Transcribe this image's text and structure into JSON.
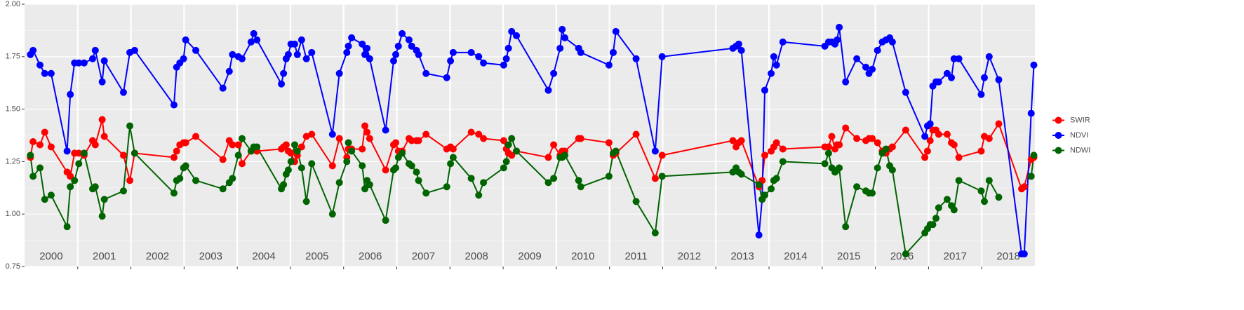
{
  "chart_data": {
    "type": "line",
    "xlim": [
      2000,
      2019
    ],
    "xticks": [
      2001,
      2002,
      2003,
      2004,
      2005,
      2006,
      2007,
      2008,
      2009,
      2010,
      2011,
      2012,
      2013,
      2014,
      2015,
      2016,
      2017,
      2018
    ],
    "ylim": [
      0.75,
      2.0
    ],
    "yticks": [
      {
        "value": 0.75,
        "label": "0.75"
      },
      {
        "value": 1.0,
        "label": "1.00"
      },
      {
        "value": 1.25,
        "label": "1.25"
      },
      {
        "value": 1.5,
        "label": "1.50"
      },
      {
        "value": 1.75,
        "label": "1.75"
      },
      {
        "value": 2.0,
        "label": "2.00"
      }
    ],
    "grid": true,
    "legend": "right",
    "annotations": [
      {
        "x": 2000.5,
        "text": "2000"
      },
      {
        "x": 2001.5,
        "text": "2001"
      },
      {
        "x": 2002.5,
        "text": "2002"
      },
      {
        "x": 2003.5,
        "text": "2003"
      },
      {
        "x": 2004.5,
        "text": "2004"
      },
      {
        "x": 2005.5,
        "text": "2005"
      },
      {
        "x": 2006.5,
        "text": "2006"
      },
      {
        "x": 2007.5,
        "text": "2007"
      },
      {
        "x": 2008.5,
        "text": "2008"
      },
      {
        "x": 2009.5,
        "text": "2009"
      },
      {
        "x": 2010.5,
        "text": "2010"
      },
      {
        "x": 2011.5,
        "text": "2011"
      },
      {
        "x": 2012.5,
        "text": "2012"
      },
      {
        "x": 2013.5,
        "text": "2013"
      },
      {
        "x": 2014.5,
        "text": "2014"
      },
      {
        "x": 2015.5,
        "text": "2015"
      },
      {
        "x": 2016.5,
        "text": "2016"
      },
      {
        "x": 2017.5,
        "text": "2017"
      },
      {
        "x": 2018.5,
        "text": "2018"
      }
    ],
    "x": [
      2000.11,
      2000.16,
      2000.29,
      2000.38,
      2000.5,
      2000.8,
      2000.86,
      2000.94,
      2001.02,
      2001.12,
      2001.28,
      2001.33,
      2001.46,
      2001.5,
      2001.86,
      2001.98,
      2002.07,
      2002.81,
      2002.86,
      2002.92,
      2002.99,
      2003.03,
      2003.22,
      2003.73,
      2003.85,
      2003.91,
      2004.02,
      2004.09,
      2004.26,
      2004.31,
      2004.37,
      2004.83,
      2004.87,
      2004.92,
      2004.96,
      2005.01,
      2005.08,
      2005.13,
      2005.21,
      2005.3,
      2005.4,
      2005.79,
      2005.92,
      2006.06,
      2006.09,
      2006.15,
      2006.35,
      2006.4,
      2006.44,
      2006.49,
      2006.79,
      2006.94,
      2006.98,
      2007.03,
      2007.1,
      2007.23,
      2007.28,
      2007.37,
      2007.41,
      2007.55,
      2007.94,
      2008.01,
      2008.06,
      2008.4,
      2008.54,
      2008.63,
      2009.01,
      2009.06,
      2009.1,
      2009.16,
      2009.25,
      2009.85,
      2009.95,
      2010.07,
      2010.11,
      2010.16,
      2010.42,
      2010.46,
      2010.99,
      2011.07,
      2011.12,
      2011.5,
      2011.86,
      2011.99,
      2013.32,
      2013.38,
      2013.43,
      2013.48,
      2013.81,
      2013.87,
      2013.92,
      2014.04,
      2014.09,
      2014.14,
      2014.26,
      2015.05,
      2015.12,
      2015.18,
      2015.24,
      2015.28,
      2015.32,
      2015.44,
      2015.65,
      2015.82,
      2015.88,
      2015.94,
      2016.04,
      2016.13,
      2016.2,
      2016.27,
      2016.32,
      2016.57,
      2016.93,
      2016.98,
      2017.03,
      2017.08,
      2017.14,
      2017.19,
      2017.35,
      2017.43,
      2017.48,
      2017.57,
      2017.99,
      2018.05,
      2018.14,
      2018.32,
      2018.75,
      2018.8,
      2018.93,
      2018.98
    ],
    "series": [
      {
        "name": "SWIR",
        "color": "#ff0000",
        "values": [
          1.27,
          1.345,
          1.33,
          1.39,
          1.32,
          1.2,
          1.18,
          1.29,
          1.29,
          1.28,
          1.35,
          1.33,
          1.45,
          1.37,
          1.28,
          1.16,
          1.29,
          1.27,
          1.3,
          1.33,
          1.34,
          1.34,
          1.37,
          1.26,
          1.35,
          1.33,
          1.33,
          1.24,
          1.3,
          1.31,
          1.3,
          1.31,
          1.32,
          1.33,
          1.3,
          1.29,
          1.25,
          1.28,
          1.32,
          1.37,
          1.38,
          1.23,
          1.36,
          1.27,
          1.31,
          1.31,
          1.31,
          1.42,
          1.39,
          1.36,
          1.21,
          1.33,
          1.34,
          1.3,
          1.3,
          1.36,
          1.35,
          1.35,
          1.35,
          1.38,
          1.31,
          1.32,
          1.31,
          1.39,
          1.38,
          1.36,
          1.35,
          1.31,
          1.29,
          1.28,
          1.3,
          1.27,
          1.33,
          1.28,
          1.3,
          1.3,
          1.36,
          1.36,
          1.34,
          1.28,
          1.29,
          1.38,
          1.17,
          1.28,
          1.35,
          1.32,
          1.34,
          1.35,
          1.13,
          1.16,
          1.28,
          1.3,
          1.32,
          1.34,
          1.31,
          1.32,
          1.32,
          1.37,
          1.31,
          1.33,
          1.33,
          1.41,
          1.36,
          1.35,
          1.36,
          1.36,
          1.34,
          1.3,
          1.29,
          1.31,
          1.32,
          1.4,
          1.27,
          1.3,
          1.35,
          1.4,
          1.4,
          1.38,
          1.38,
          1.34,
          1.33,
          1.27,
          1.3,
          1.37,
          1.36,
          1.43,
          1.12,
          1.13,
          1.26,
          1.27
        ]
      },
      {
        "name": "NDVI",
        "color": "#0000ff",
        "values": [
          1.76,
          1.78,
          1.71,
          1.67,
          1.67,
          1.3,
          1.57,
          1.72,
          1.72,
          1.72,
          1.74,
          1.78,
          1.63,
          1.73,
          1.58,
          1.77,
          1.78,
          1.52,
          1.7,
          1.72,
          1.74,
          1.83,
          1.78,
          1.6,
          1.68,
          1.76,
          1.75,
          1.74,
          1.82,
          1.86,
          1.83,
          1.62,
          1.67,
          1.74,
          1.76,
          1.81,
          1.81,
          1.76,
          1.83,
          1.74,
          1.77,
          1.38,
          1.67,
          1.77,
          1.8,
          1.84,
          1.81,
          1.76,
          1.79,
          1.74,
          1.4,
          1.73,
          1.76,
          1.8,
          1.86,
          1.83,
          1.8,
          1.78,
          1.76,
          1.67,
          1.65,
          1.73,
          1.77,
          1.77,
          1.75,
          1.72,
          1.71,
          1.74,
          1.79,
          1.87,
          1.85,
          1.59,
          1.67,
          1.79,
          1.88,
          1.84,
          1.79,
          1.77,
          1.71,
          1.77,
          1.87,
          1.74,
          1.3,
          1.75,
          1.79,
          1.8,
          1.81,
          1.78,
          0.9,
          1.07,
          1.59,
          1.67,
          1.75,
          1.71,
          1.82,
          1.8,
          1.82,
          1.82,
          1.81,
          1.83,
          1.89,
          1.63,
          1.74,
          1.7,
          1.67,
          1.69,
          1.78,
          1.82,
          1.83,
          1.84,
          1.82,
          1.58,
          1.37,
          1.42,
          1.43,
          1.61,
          1.63,
          1.63,
          1.67,
          1.65,
          1.74,
          1.74,
          1.57,
          1.65,
          1.75,
          1.64,
          0.81,
          0.81,
          1.48,
          1.71
        ]
      },
      {
        "name": "NDWI",
        "color": "#006400",
        "values": [
          1.28,
          1.18,
          1.22,
          1.07,
          1.09,
          0.94,
          1.13,
          1.16,
          1.24,
          1.29,
          1.12,
          1.13,
          0.99,
          1.07,
          1.11,
          1.42,
          1.29,
          1.1,
          1.16,
          1.17,
          1.22,
          1.23,
          1.16,
          1.12,
          1.15,
          1.17,
          1.28,
          1.36,
          1.3,
          1.32,
          1.32,
          1.12,
          1.14,
          1.19,
          1.21,
          1.25,
          1.33,
          1.3,
          1.22,
          1.06,
          1.24,
          1.0,
          1.15,
          1.25,
          1.34,
          1.3,
          1.23,
          1.12,
          1.16,
          1.14,
          0.97,
          1.21,
          1.22,
          1.27,
          1.29,
          1.24,
          1.23,
          1.2,
          1.16,
          1.1,
          1.13,
          1.24,
          1.27,
          1.17,
          1.09,
          1.15,
          1.22,
          1.25,
          1.33,
          1.36,
          1.3,
          1.15,
          1.17,
          1.27,
          1.27,
          1.28,
          1.16,
          1.13,
          1.18,
          1.29,
          1.3,
          1.06,
          0.91,
          1.18,
          1.2,
          1.22,
          1.2,
          1.19,
          1.14,
          1.07,
          1.09,
          1.12,
          1.16,
          1.17,
          1.25,
          1.24,
          1.29,
          1.22,
          1.2,
          1.21,
          1.22,
          0.94,
          1.13,
          1.11,
          1.1,
          1.1,
          1.22,
          1.29,
          1.31,
          1.23,
          1.21,
          0.81,
          0.91,
          0.93,
          0.95,
          0.95,
          0.98,
          1.03,
          1.07,
          1.04,
          1.02,
          1.16,
          1.11,
          1.06,
          1.16,
          1.08,
          null,
          null,
          1.18,
          1.28
        ]
      }
    ]
  }
}
